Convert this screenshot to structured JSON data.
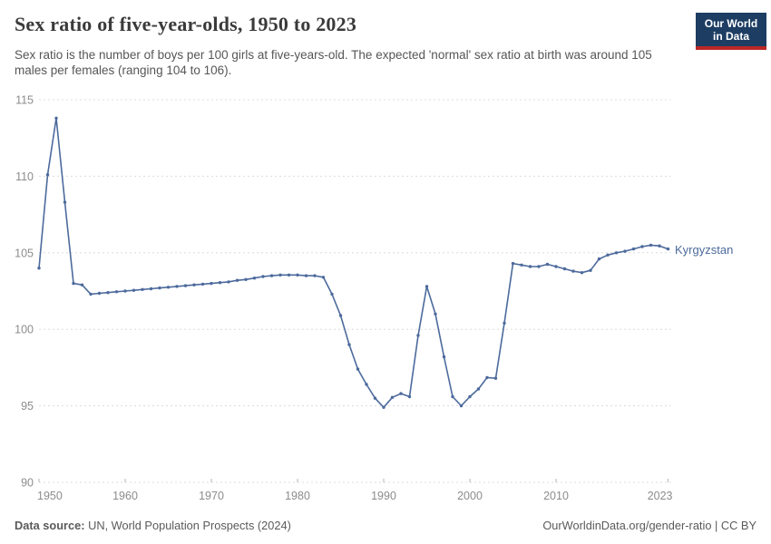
{
  "header": {
    "title": "Sex ratio of five-year-olds, 1950 to 2023",
    "subtitle": "Sex ratio is the number of boys per 100 girls at five-years-old. The expected 'normal' sex ratio at birth was around 105 males per females (ranging 104 to 106).",
    "logo": {
      "line1": "Our World",
      "line2": "in Data",
      "bg_color": "#1d3d63",
      "accent_color": "#bc2726"
    }
  },
  "chart_data": {
    "type": "line",
    "title": "Sex ratio of five-year-olds, 1950 to 2023",
    "xlabel": "",
    "ylabel": "",
    "x_start": 1950,
    "x_end": 2023,
    "ylim": [
      90,
      115
    ],
    "y_ticks": [
      90,
      95,
      100,
      105,
      110,
      115
    ],
    "x_ticks": [
      1950,
      1960,
      1970,
      1980,
      1990,
      2000,
      2010,
      2023
    ],
    "grid": "horizontal-dashed",
    "markers": true,
    "legend_position": "end-of-line",
    "end_label": "Kyrgyzstan",
    "series": [
      {
        "name": "Kyrgyzstan",
        "color": "#4c6a9c",
        "values": [
          104.0,
          110.1,
          113.8,
          108.3,
          103.0,
          102.9,
          102.3,
          102.35,
          102.4,
          102.45,
          102.5,
          102.55,
          102.6,
          102.65,
          102.7,
          102.75,
          102.8,
          102.85,
          102.9,
          102.95,
          103.0,
          103.05,
          103.1,
          103.2,
          103.25,
          103.35,
          103.45,
          103.5,
          103.55,
          103.55,
          103.55,
          103.5,
          103.5,
          103.4,
          102.3,
          100.9,
          99.0,
          97.4,
          96.4,
          95.5,
          94.9,
          95.55,
          95.8,
          95.6,
          99.6,
          102.8,
          101.0,
          98.2,
          95.6,
          95.0,
          95.6,
          96.1,
          96.85,
          96.8,
          100.4,
          104.3,
          104.2,
          104.1,
          104.1,
          104.25,
          104.1,
          103.95,
          103.8,
          103.7,
          103.85,
          104.6,
          104.85,
          105.0,
          105.1,
          105.25,
          105.4,
          105.5,
          105.45,
          105.25
        ]
      }
    ]
  },
  "footer": {
    "data_source_label": "Data source:",
    "data_source_value": " UN, World Population Prospects (2024)",
    "attribution": "OurWorldinData.org/gender-ratio | CC BY"
  },
  "colors": {
    "line": "#4c6a9c",
    "gridline": "#dcdcdc",
    "axis_label": "#8c8c8c",
    "title_text": "#3a3a3a",
    "subtitle_text": "#565656",
    "footer_text": "#5a5a5a"
  }
}
